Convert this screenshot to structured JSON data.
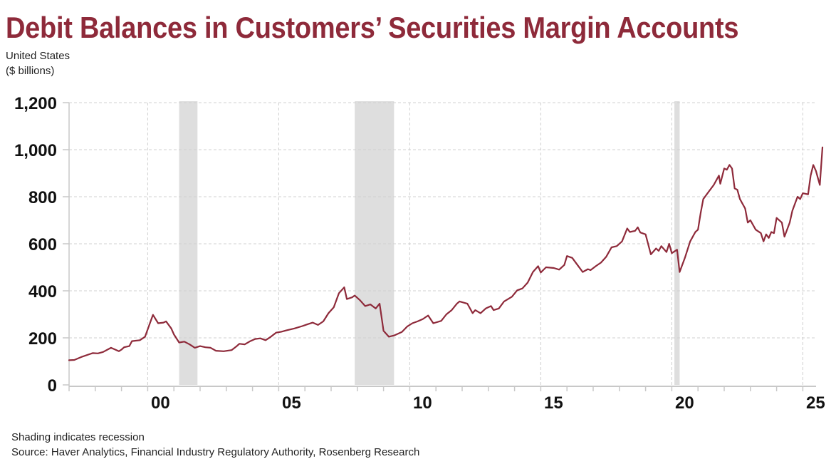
{
  "chart_data": {
    "type": "line",
    "title": "Debit Balances in Customers’ Securities Margin Accounts",
    "subtitle_lines": [
      "United States",
      "($ billions)"
    ],
    "xlabel": "",
    "ylabel": "$ billions",
    "ylim": [
      0,
      1200
    ],
    "xlim": [
      1997.0,
      2025.75
    ],
    "yticks": [
      0,
      200,
      400,
      600,
      800,
      1000,
      1200
    ],
    "ytick_labels": [
      "0",
      "200",
      "400",
      "600",
      "800",
      "1,000",
      "1,200"
    ],
    "xticks_major": [
      2000,
      2005,
      2010,
      2015,
      2020,
      2025
    ],
    "xtick_labels": [
      "00",
      "05",
      "10",
      "15",
      "20",
      "25"
    ],
    "grid": true,
    "legend": "none",
    "colors": {
      "line": "#8e2a3a",
      "recession": "#dedede",
      "title": "#8e2a3a",
      "grid": "#d0d0d0",
      "axis": "#c8c8c8"
    },
    "recessions": [
      {
        "start": 2001.2,
        "end": 2001.9
      },
      {
        "start": 2007.9,
        "end": 2009.4
      },
      {
        "start": 2020.1,
        "end": 2020.3
      }
    ],
    "series": [
      {
        "name": "Debit balances in customers' securities margin accounts",
        "points": [
          [
            1997.0,
            105
          ],
          [
            1997.2,
            106
          ],
          [
            1997.5,
            120
          ],
          [
            1997.9,
            135
          ],
          [
            1998.1,
            134
          ],
          [
            1998.3,
            140
          ],
          [
            1998.6,
            158
          ],
          [
            1998.9,
            143
          ],
          [
            1999.0,
            150
          ],
          [
            1999.1,
            160
          ],
          [
            1999.3,
            165
          ],
          [
            1999.4,
            186
          ],
          [
            1999.7,
            190
          ],
          [
            1999.9,
            205
          ],
          [
            2000.2,
            298
          ],
          [
            2000.4,
            262
          ],
          [
            2000.6,
            265
          ],
          [
            2000.7,
            270
          ],
          [
            2000.9,
            240
          ],
          [
            2001.0,
            215
          ],
          [
            2001.2,
            180
          ],
          [
            2001.4,
            184
          ],
          [
            2001.6,
            172
          ],
          [
            2001.8,
            158
          ],
          [
            2002.0,
            165
          ],
          [
            2002.2,
            160
          ],
          [
            2002.4,
            158
          ],
          [
            2002.6,
            145
          ],
          [
            2002.9,
            143
          ],
          [
            2003.2,
            148
          ],
          [
            2003.4,
            165
          ],
          [
            2003.5,
            175
          ],
          [
            2003.7,
            172
          ],
          [
            2003.9,
            185
          ],
          [
            2004.1,
            195
          ],
          [
            2004.3,
            198
          ],
          [
            2004.5,
            190
          ],
          [
            2004.7,
            205
          ],
          [
            2004.9,
            222
          ],
          [
            2005.1,
            226
          ],
          [
            2005.3,
            232
          ],
          [
            2005.6,
            240
          ],
          [
            2005.9,
            250
          ],
          [
            2006.1,
            258
          ],
          [
            2006.3,
            265
          ],
          [
            2006.5,
            255
          ],
          [
            2006.7,
            270
          ],
          [
            2006.9,
            305
          ],
          [
            2007.1,
            330
          ],
          [
            2007.3,
            390
          ],
          [
            2007.5,
            415
          ],
          [
            2007.6,
            365
          ],
          [
            2007.8,
            372
          ],
          [
            2007.9,
            380
          ],
          [
            2008.1,
            360
          ],
          [
            2008.3,
            335
          ],
          [
            2008.5,
            342
          ],
          [
            2008.7,
            325
          ],
          [
            2008.85,
            345
          ],
          [
            2009.0,
            230
          ],
          [
            2009.2,
            205
          ],
          [
            2009.4,
            210
          ],
          [
            2009.7,
            225
          ],
          [
            2009.9,
            248
          ],
          [
            2010.1,
            262
          ],
          [
            2010.3,
            270
          ],
          [
            2010.5,
            280
          ],
          [
            2010.7,
            295
          ],
          [
            2010.9,
            262
          ],
          [
            2011.2,
            272
          ],
          [
            2011.4,
            300
          ],
          [
            2011.6,
            318
          ],
          [
            2011.8,
            345
          ],
          [
            2011.9,
            355
          ],
          [
            2012.2,
            345
          ],
          [
            2012.4,
            305
          ],
          [
            2012.5,
            318
          ],
          [
            2012.7,
            305
          ],
          [
            2012.9,
            325
          ],
          [
            2013.1,
            335
          ],
          [
            2013.2,
            318
          ],
          [
            2013.4,
            325
          ],
          [
            2013.6,
            355
          ],
          [
            2013.9,
            375
          ],
          [
            2014.1,
            402
          ],
          [
            2014.3,
            410
          ],
          [
            2014.5,
            435
          ],
          [
            2014.7,
            480
          ],
          [
            2014.9,
            505
          ],
          [
            2015.0,
            478
          ],
          [
            2015.2,
            500
          ],
          [
            2015.5,
            497
          ],
          [
            2015.7,
            490
          ],
          [
            2015.9,
            510
          ],
          [
            2016.0,
            548
          ],
          [
            2016.2,
            540
          ],
          [
            2016.4,
            510
          ],
          [
            2016.6,
            480
          ],
          [
            2016.8,
            492
          ],
          [
            2016.9,
            488
          ],
          [
            2017.1,
            505
          ],
          [
            2017.3,
            520
          ],
          [
            2017.5,
            545
          ],
          [
            2017.7,
            585
          ],
          [
            2017.9,
            590
          ],
          [
            2018.1,
            610
          ],
          [
            2018.3,
            665
          ],
          [
            2018.4,
            650
          ],
          [
            2018.6,
            655
          ],
          [
            2018.7,
            670
          ],
          [
            2018.8,
            648
          ],
          [
            2019.0,
            640
          ],
          [
            2019.2,
            555
          ],
          [
            2019.4,
            580
          ],
          [
            2019.5,
            570
          ],
          [
            2019.6,
            590
          ],
          [
            2019.8,
            565
          ],
          [
            2019.9,
            600
          ],
          [
            2020.0,
            560
          ],
          [
            2020.2,
            575
          ],
          [
            2020.3,
            480
          ],
          [
            2020.5,
            540
          ],
          [
            2020.7,
            610
          ],
          [
            2020.9,
            650
          ],
          [
            2021.0,
            660
          ],
          [
            2021.1,
            730
          ],
          [
            2021.2,
            790
          ],
          [
            2021.4,
            820
          ],
          [
            2021.6,
            850
          ],
          [
            2021.8,
            890
          ],
          [
            2021.85,
            855
          ],
          [
            2022.0,
            920
          ],
          [
            2022.1,
            915
          ],
          [
            2022.2,
            935
          ],
          [
            2022.3,
            920
          ],
          [
            2022.4,
            835
          ],
          [
            2022.5,
            830
          ],
          [
            2022.6,
            790
          ],
          [
            2022.8,
            750
          ],
          [
            2022.9,
            690
          ],
          [
            2023.0,
            700
          ],
          [
            2023.2,
            660
          ],
          [
            2023.4,
            645
          ],
          [
            2023.5,
            610
          ],
          [
            2023.6,
            640
          ],
          [
            2023.7,
            625
          ],
          [
            2023.8,
            650
          ],
          [
            2023.9,
            645
          ],
          [
            2024.0,
            710
          ],
          [
            2024.2,
            690
          ],
          [
            2024.3,
            630
          ],
          [
            2024.5,
            690
          ],
          [
            2024.6,
            740
          ],
          [
            2024.8,
            800
          ],
          [
            2024.9,
            790
          ],
          [
            2025.0,
            815
          ],
          [
            2025.2,
            810
          ],
          [
            2025.3,
            890
          ],
          [
            2025.4,
            935
          ],
          [
            2025.5,
            910
          ],
          [
            2025.65,
            850
          ],
          [
            2025.75,
            1010
          ]
        ]
      }
    ]
  },
  "labels": {
    "title": "Debit Balances in Customers’ Securities Margin Accounts",
    "subtitle_line1": "United States",
    "subtitle_line2": "($ billions)",
    "footnote_line1": "Shading indicates recession",
    "footnote_line2": "Source: Haver Analytics, Financial Industry Regulatory Authority, Rosenberg Research"
  }
}
